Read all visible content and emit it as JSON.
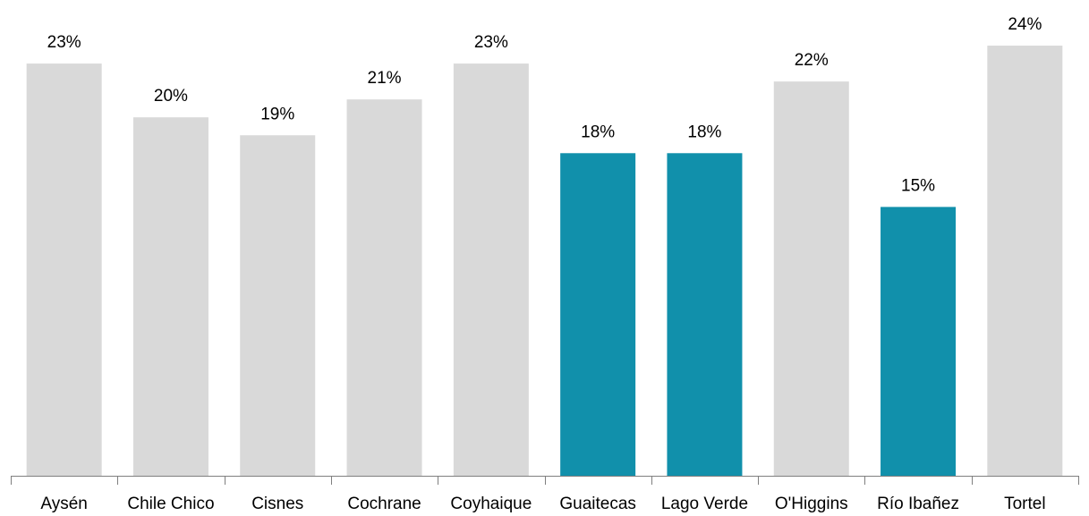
{
  "chart_data": {
    "type": "bar",
    "categories": [
      "Aysén",
      "Chile Chico",
      "Cisnes",
      "Cochrane",
      "Coyhaique",
      "Guaitecas",
      "Lago Verde",
      "O'Higgins",
      "Río Ibañez",
      "Tortel"
    ],
    "values": [
      23,
      20,
      19,
      21,
      23,
      18,
      18,
      22,
      15,
      24
    ],
    "value_labels": [
      "23%",
      "20%",
      "19%",
      "21%",
      "23%",
      "18%",
      "18%",
      "22%",
      "15%",
      "24%"
    ],
    "colors": [
      "#d9d9d9",
      "#d9d9d9",
      "#d9d9d9",
      "#d9d9d9",
      "#d9d9d9",
      "#1190ab",
      "#1190ab",
      "#d9d9d9",
      "#1190ab",
      "#d9d9d9"
    ]
  }
}
